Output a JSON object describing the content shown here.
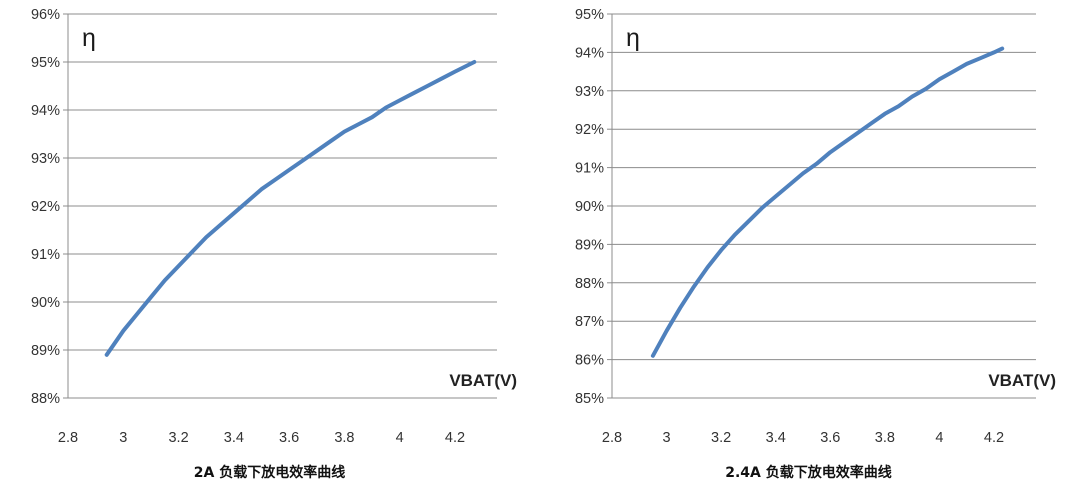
{
  "chart_data": [
    {
      "type": "line",
      "title": "2A 负载下放电效率曲线",
      "xlabel": "VBAT(V)",
      "ylabel": "η",
      "xlim": [
        2.8,
        4.2
      ],
      "ylim": [
        88,
        96
      ],
      "x_ticks": [
        "2.8",
        "3",
        "3.2",
        "3.4",
        "3.6",
        "3.8",
        "4",
        "4.2"
      ],
      "y_ticks": [
        "88%",
        "89%",
        "90%",
        "91%",
        "92%",
        "93%",
        "94%",
        "95%",
        "96%"
      ],
      "grid": true,
      "series": [
        {
          "color": "#4f81bd",
          "x": [
            2.94,
            3.0,
            3.05,
            3.1,
            3.15,
            3.2,
            3.25,
            3.3,
            3.35,
            3.4,
            3.45,
            3.5,
            3.55,
            3.6,
            3.65,
            3.7,
            3.75,
            3.8,
            3.85,
            3.9,
            3.95,
            4.0,
            4.05,
            4.1,
            4.15,
            4.2,
            4.27
          ],
          "y": [
            88.9,
            89.4,
            89.75,
            90.1,
            90.45,
            90.75,
            91.05,
            91.35,
            91.6,
            91.85,
            92.1,
            92.35,
            92.55,
            92.75,
            92.95,
            93.15,
            93.35,
            93.55,
            93.7,
            93.85,
            94.05,
            94.2,
            94.35,
            94.5,
            94.65,
            94.8,
            95.0
          ]
        }
      ]
    },
    {
      "type": "line",
      "title": "2.4A 负载下放电效率曲线",
      "xlabel": "VBAT(V)",
      "ylabel": "η",
      "xlim": [
        2.8,
        4.2
      ],
      "ylim": [
        85,
        95
      ],
      "x_ticks": [
        "2.8",
        "3",
        "3.2",
        "3.4",
        "3.6",
        "3.8",
        "4",
        "4.2"
      ],
      "y_ticks": [
        "85%",
        "86%",
        "87%",
        "88%",
        "89%",
        "90%",
        "91%",
        "92%",
        "93%",
        "94%",
        "95%"
      ],
      "grid": true,
      "series": [
        {
          "color": "#4f81bd",
          "x": [
            2.95,
            3.0,
            3.05,
            3.1,
            3.15,
            3.2,
            3.25,
            3.3,
            3.35,
            3.4,
            3.45,
            3.5,
            3.55,
            3.6,
            3.65,
            3.7,
            3.75,
            3.8,
            3.85,
            3.9,
            3.95,
            4.0,
            4.05,
            4.1,
            4.15,
            4.2,
            4.23
          ],
          "y": [
            86.1,
            86.75,
            87.35,
            87.9,
            88.4,
            88.85,
            89.25,
            89.6,
            89.95,
            90.25,
            90.55,
            90.85,
            91.1,
            91.4,
            91.65,
            91.9,
            92.15,
            92.4,
            92.6,
            92.85,
            93.05,
            93.3,
            93.5,
            93.7,
            93.85,
            94.0,
            94.1
          ]
        }
      ]
    }
  ]
}
